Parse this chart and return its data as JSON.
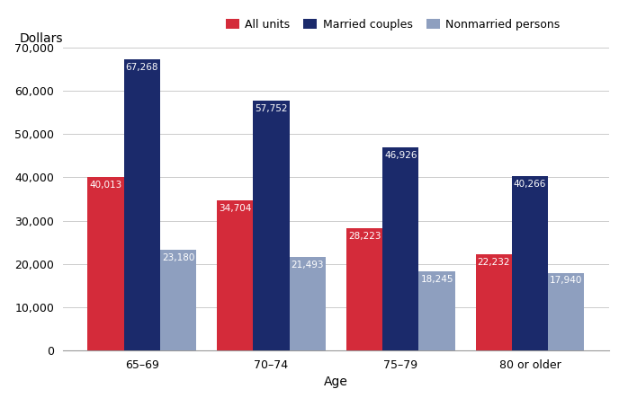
{
  "categories": [
    "65–69",
    "70–74",
    "75–79",
    "80 or older"
  ],
  "series": {
    "All units": [
      40013,
      34704,
      28223,
      22232
    ],
    "Married couples": [
      67268,
      57752,
      46926,
      40266
    ],
    "Nonmarried persons": [
      23180,
      21493,
      18245,
      17940
    ]
  },
  "colors": {
    "All units": "#D42B3A",
    "Married couples": "#1B2A6B",
    "Nonmarried persons": "#8E9FBF"
  },
  "legend_order": [
    "All units",
    "Married couples",
    "Nonmarried persons"
  ],
  "ylabel": "Dollars",
  "xlabel": "Age",
  "ylim": [
    0,
    70000
  ],
  "yticks": [
    0,
    10000,
    20000,
    30000,
    40000,
    50000,
    60000,
    70000
  ],
  "bar_width": 0.28,
  "label_fontsize": 7.5,
  "axis_label_fontsize": 10,
  "tick_fontsize": 9,
  "legend_fontsize": 9,
  "background_color": "#FFFFFF"
}
